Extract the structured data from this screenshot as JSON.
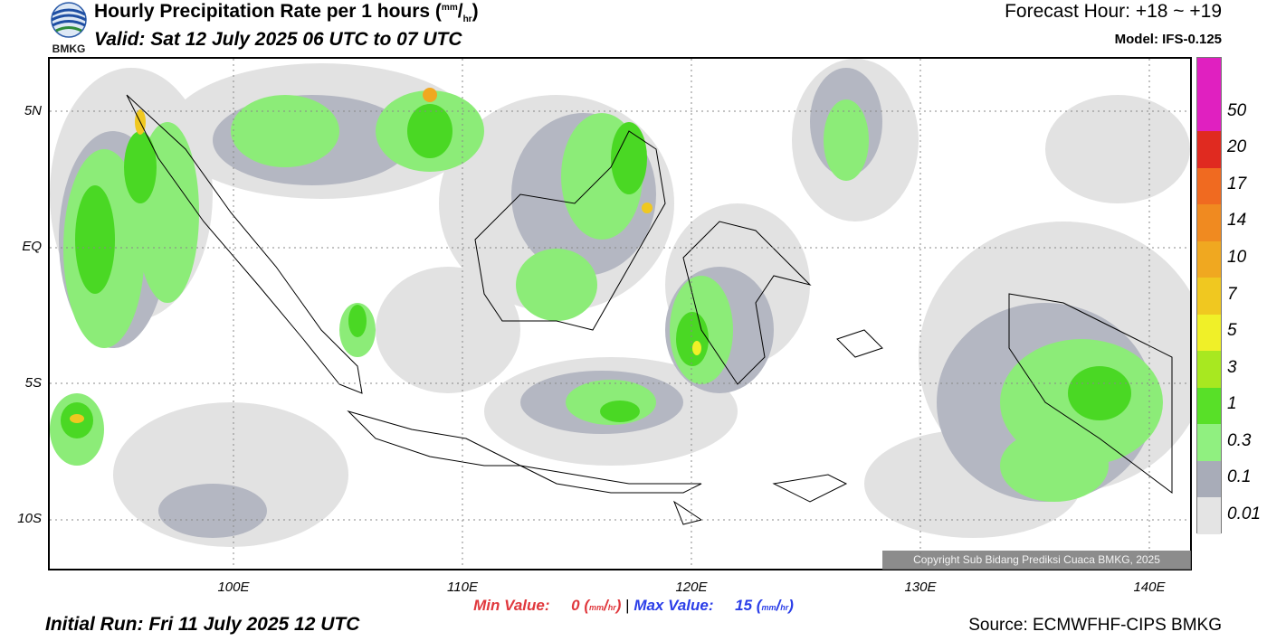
{
  "header": {
    "title": "Hourly Precipitation Rate per 1 hours",
    "title_unit_top": "mm",
    "title_unit_bottom": "hr",
    "valid": "Valid: Sat 12 July 2025 06 UTC to 07 UTC",
    "forecast_hour": "Forecast Hour: +18 ~ +19",
    "model": "Model: IFS-0.125",
    "logo_text": "BMKG"
  },
  "map": {
    "y_axis_labels": [
      "5N",
      "EQ",
      "5S",
      "10S"
    ],
    "x_axis_labels": [
      "100E",
      "110E",
      "120E",
      "130E",
      "140E"
    ],
    "copyright": "Copyright Sub Bidang Prediksi Cuaca BMKG, 2025"
  },
  "colorbar": {
    "labels": [
      "50",
      "20",
      "17",
      "14",
      "10",
      "7",
      "5",
      "3",
      "1",
      "0.3",
      "0.1",
      "0.01"
    ],
    "colors": [
      "#e020c0",
      "#e02a20",
      "#f06a20",
      "#f08a20",
      "#f0a820",
      "#f0c820",
      "#f0f028",
      "#a8e820",
      "#58e028",
      "#90f080",
      "#a8acb8",
      "#e4e4e4"
    ]
  },
  "footer": {
    "min_label": "Min Value:",
    "min_value": "0",
    "max_label": "Max Value:",
    "max_value": "15",
    "unit_top": "mm",
    "unit_bottom": "hr",
    "initial_run": "Initial Run: Fri 11 July 2025 12 UTC",
    "source": "Source: ECMWFHF-CIPS BMKG"
  }
}
